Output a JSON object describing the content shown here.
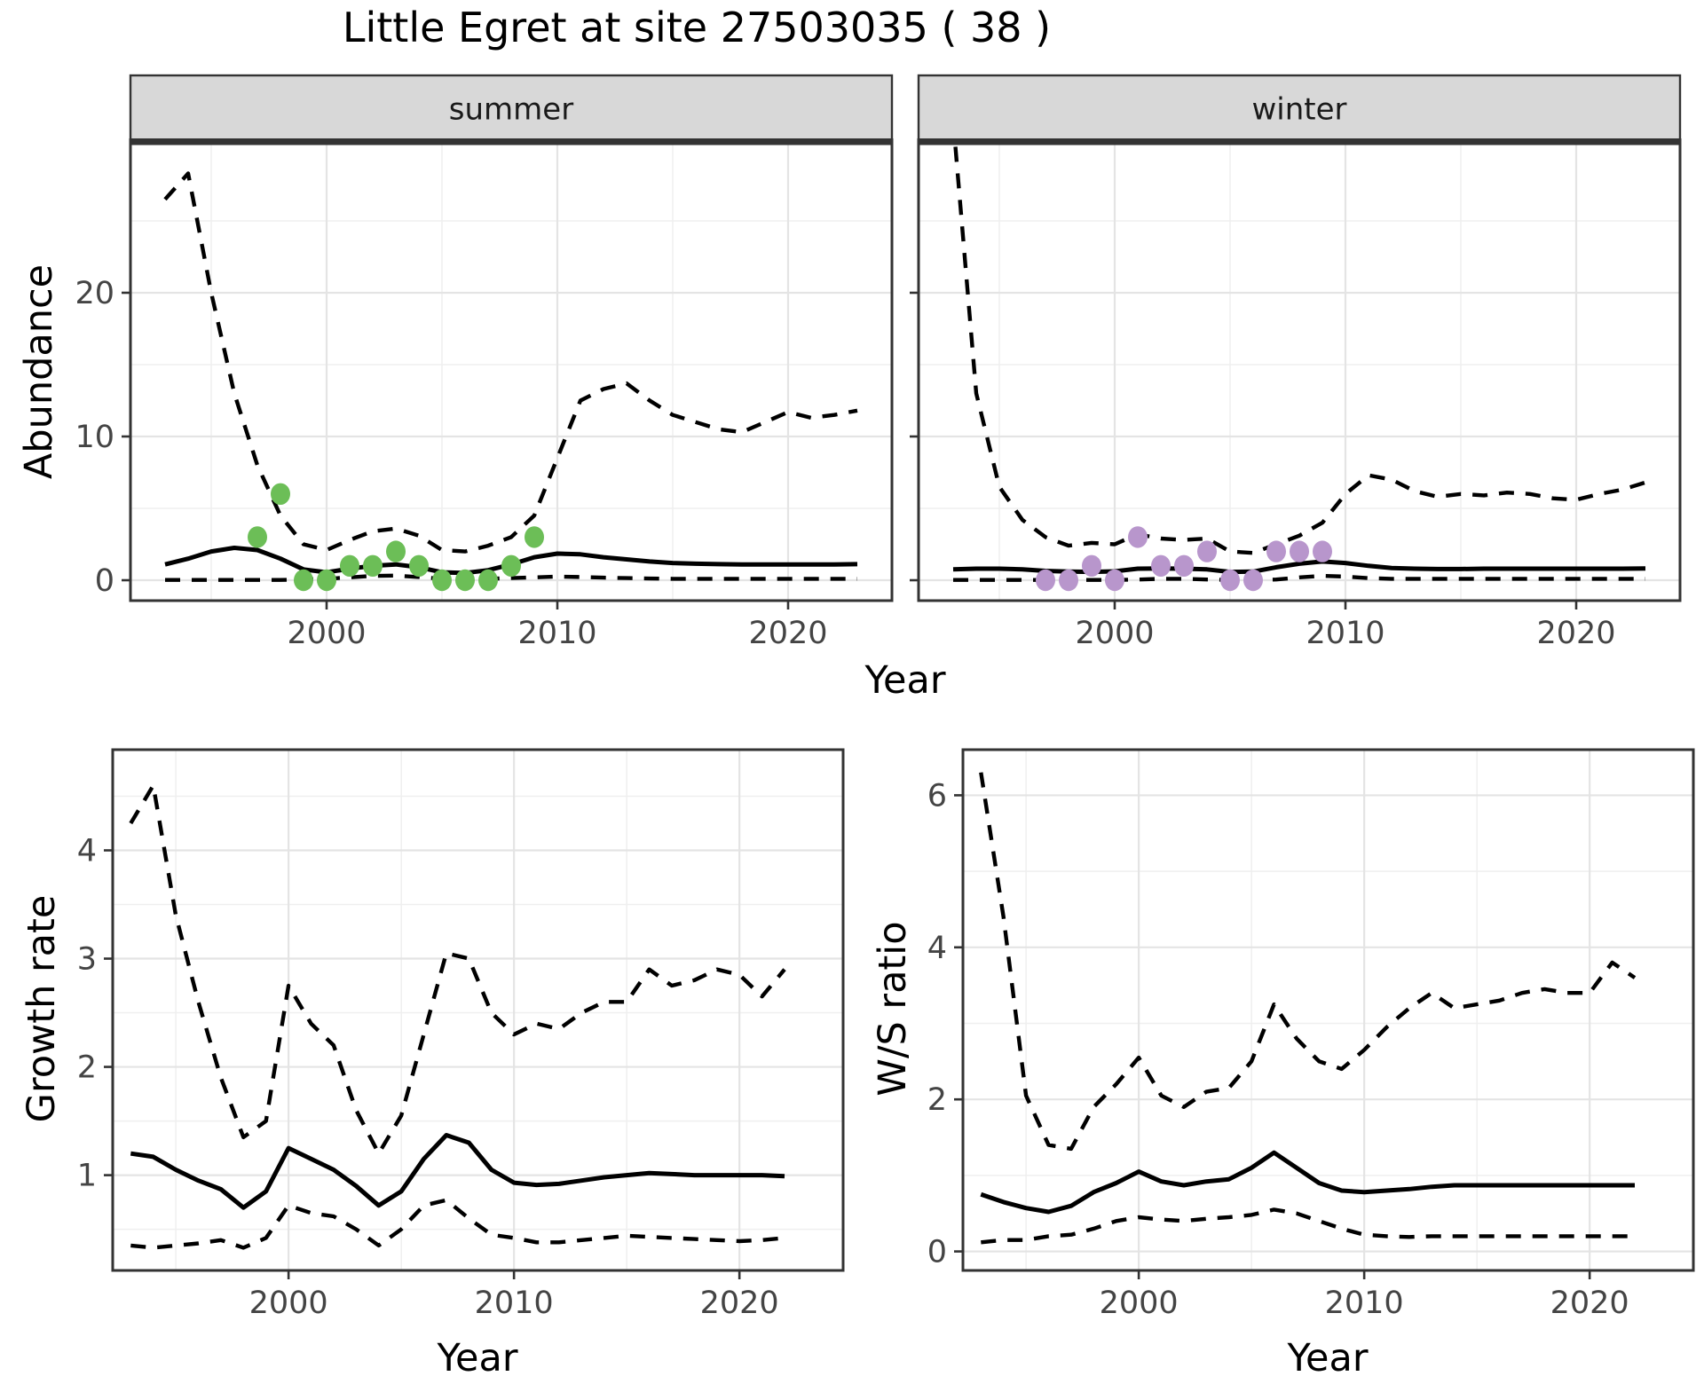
{
  "title": "Little Egret at site 27503035 ( 38 )",
  "labels": {
    "abundance": "Abundance",
    "growth_rate": "Growth rate",
    "ws_ratio": "W/S ratio",
    "year": "Year"
  },
  "style": {
    "summer_point_color": "#6cbe57",
    "winter_point_color": "#b896cc",
    "line_color": "#000000",
    "border_color": "#333333",
    "strip_bg": "#d8d8d8",
    "strip_text_color": "#1a1a1a",
    "grid_major": "#e4e4e4",
    "grid_minor": "#efefef",
    "tick_text_color": "#444444",
    "panel_bg": "#ffffff"
  },
  "chart_data": [
    {
      "id": "abundance-summer",
      "type": "line",
      "facet_label": "summer",
      "xlabel": "Year",
      "ylabel": "Abundance",
      "x_range": [
        1991.5,
        2024.5
      ],
      "y_range": [
        -1.42,
        30.37
      ],
      "xticks": [
        2000,
        2010,
        2020
      ],
      "yticks": [
        0,
        10,
        20
      ],
      "grid": true,
      "legend": "none",
      "x": [
        1993,
        1994,
        1995,
        1996,
        1997,
        1998,
        1999,
        2000,
        2001,
        2002,
        2003,
        2004,
        2005,
        2006,
        2007,
        2008,
        2009,
        2010,
        2011,
        2012,
        2013,
        2014,
        2015,
        2016,
        2017,
        2018,
        2019,
        2020,
        2021,
        2022,
        2023
      ],
      "series": [
        {
          "name": "upper_ci",
          "style": "dashed",
          "y": [
            26.5,
            28.3,
            20.0,
            13.0,
            8.0,
            4.5,
            2.5,
            2.1,
            2.8,
            3.4,
            3.6,
            3.1,
            2.1,
            2.0,
            2.4,
            3.0,
            4.5,
            8.5,
            12.5,
            13.3,
            13.7,
            12.5,
            11.5,
            11.0,
            10.5,
            10.3,
            11.0,
            11.7,
            11.3,
            11.5,
            11.8
          ]
        },
        {
          "name": "mean",
          "style": "solid",
          "y": [
            1.1,
            1.5,
            2.0,
            2.25,
            2.1,
            1.5,
            0.75,
            0.55,
            0.8,
            1.0,
            1.1,
            0.9,
            0.55,
            0.5,
            0.7,
            1.1,
            1.6,
            1.85,
            1.8,
            1.6,
            1.45,
            1.3,
            1.2,
            1.15,
            1.12,
            1.1,
            1.1,
            1.1,
            1.1,
            1.1,
            1.12
          ]
        },
        {
          "name": "lower_ci",
          "style": "dashed",
          "y": [
            0.02,
            0.02,
            0.02,
            0.02,
            0.02,
            0.02,
            0.05,
            0.1,
            0.2,
            0.3,
            0.32,
            0.22,
            0.1,
            0.08,
            0.1,
            0.15,
            0.2,
            0.25,
            0.22,
            0.18,
            0.15,
            0.12,
            0.1,
            0.1,
            0.1,
            0.1,
            0.1,
            0.1,
            0.1,
            0.1,
            0.1
          ]
        }
      ],
      "points": {
        "name": "observed-counts",
        "color": "#6cbe57",
        "x": [
          1997,
          1998,
          1999,
          2000,
          2001,
          2002,
          2003,
          2004,
          2005,
          2006,
          2007,
          2008,
          2009
        ],
        "y": [
          3,
          6,
          0,
          0,
          1,
          1,
          2,
          1,
          0,
          0,
          0,
          1,
          3
        ]
      }
    },
    {
      "id": "abundance-winter",
      "type": "line",
      "facet_label": "winter",
      "xlabel": "Year",
      "ylabel": "Abundance",
      "x_range": [
        1991.5,
        2024.5
      ],
      "y_range": [
        -1.42,
        30.37
      ],
      "xticks": [
        2000,
        2010,
        2020
      ],
      "yticks": [
        0,
        10,
        20
      ],
      "grid": true,
      "legend": "none",
      "x": [
        1993,
        1994,
        1995,
        1996,
        1997,
        1998,
        1999,
        2000,
        2001,
        2002,
        2003,
        2004,
        2005,
        2006,
        2007,
        2008,
        2009,
        2010,
        2011,
        2012,
        2013,
        2014,
        2015,
        2016,
        2017,
        2018,
        2019,
        2020,
        2021,
        2022,
        2023
      ],
      "series": [
        {
          "name": "upper_ci",
          "style": "dashed",
          "y": [
            32.0,
            13.0,
            6.5,
            4.2,
            3.0,
            2.4,
            2.6,
            2.5,
            3.2,
            2.9,
            2.8,
            2.9,
            2.0,
            1.9,
            2.5,
            3.1,
            4.0,
            6.0,
            7.3,
            7.0,
            6.2,
            5.8,
            6.0,
            5.9,
            6.1,
            6.0,
            5.7,
            5.6,
            6.0,
            6.3,
            6.8
          ]
        },
        {
          "name": "mean",
          "style": "solid",
          "y": [
            0.75,
            0.8,
            0.8,
            0.75,
            0.65,
            0.6,
            0.58,
            0.62,
            0.8,
            0.82,
            0.8,
            0.75,
            0.58,
            0.6,
            0.9,
            1.15,
            1.3,
            1.2,
            1.0,
            0.85,
            0.8,
            0.78,
            0.78,
            0.8,
            0.8,
            0.8,
            0.8,
            0.8,
            0.8,
            0.8,
            0.82
          ]
        },
        {
          "name": "lower_ci",
          "style": "dashed",
          "y": [
            0.02,
            0.02,
            0.02,
            0.02,
            0.02,
            0.02,
            0.02,
            0.02,
            0.05,
            0.1,
            0.1,
            0.05,
            0.02,
            0.02,
            0.05,
            0.2,
            0.3,
            0.25,
            0.15,
            0.1,
            0.1,
            0.1,
            0.1,
            0.1,
            0.1,
            0.1,
            0.1,
            0.1,
            0.1,
            0.1,
            0.1
          ]
        }
      ],
      "points": {
        "name": "observed-counts",
        "color": "#b896cc",
        "x": [
          1997,
          1998,
          1999,
          2000,
          2001,
          2002,
          2003,
          2004,
          2005,
          2006,
          2007,
          2008,
          2009
        ],
        "y": [
          0,
          0,
          1,
          0,
          3,
          1,
          1,
          2,
          0,
          0,
          2,
          2,
          2
        ]
      }
    },
    {
      "id": "growth-rate",
      "type": "line",
      "facet_label": "",
      "xlabel": "Year",
      "ylabel": "Growth rate",
      "x_range": [
        1992.2,
        2024.6
      ],
      "y_range": [
        0.12,
        4.93
      ],
      "xticks": [
        2000,
        2010,
        2020
      ],
      "yticks": [
        1,
        2,
        3,
        4
      ],
      "grid": true,
      "legend": "none",
      "x": [
        1993,
        1994,
        1995,
        1996,
        1997,
        1998,
        1999,
        2000,
        2001,
        2002,
        2003,
        2004,
        2005,
        2006,
        2007,
        2008,
        2009,
        2010,
        2011,
        2012,
        2013,
        2014,
        2015,
        2016,
        2017,
        2018,
        2019,
        2020,
        2021,
        2022
      ],
      "series": [
        {
          "name": "upper_ci",
          "style": "dashed",
          "y": [
            4.25,
            4.6,
            3.4,
            2.6,
            1.9,
            1.35,
            1.5,
            2.75,
            2.4,
            2.2,
            1.6,
            1.2,
            1.55,
            2.3,
            3.05,
            3.0,
            2.5,
            2.3,
            2.4,
            2.35,
            2.5,
            2.6,
            2.6,
            2.9,
            2.75,
            2.8,
            2.9,
            2.85,
            2.65,
            2.9
          ]
        },
        {
          "name": "mean",
          "style": "solid",
          "y": [
            1.2,
            1.17,
            1.05,
            0.95,
            0.87,
            0.7,
            0.85,
            1.25,
            1.15,
            1.05,
            0.9,
            0.72,
            0.85,
            1.15,
            1.37,
            1.3,
            1.05,
            0.93,
            0.91,
            0.92,
            0.95,
            0.98,
            1.0,
            1.02,
            1.01,
            1.0,
            1.0,
            1.0,
            1.0,
            0.99
          ]
        },
        {
          "name": "lower_ci",
          "style": "dashed",
          "y": [
            0.35,
            0.33,
            0.35,
            0.37,
            0.4,
            0.33,
            0.42,
            0.72,
            0.65,
            0.62,
            0.5,
            0.35,
            0.5,
            0.72,
            0.77,
            0.6,
            0.45,
            0.42,
            0.38,
            0.38,
            0.4,
            0.42,
            0.44,
            0.43,
            0.42,
            0.41,
            0.4,
            0.39,
            0.4,
            0.42
          ]
        }
      ]
    },
    {
      "id": "ws-ratio",
      "type": "line",
      "facet_label": "",
      "xlabel": "Year",
      "ylabel": "W/S ratio",
      "x_range": [
        1992.2,
        2024.6
      ],
      "y_range": [
        -0.25,
        6.6
      ],
      "xticks": [
        2000,
        2010,
        2020
      ],
      "yticks": [
        0,
        2,
        4,
        6
      ],
      "grid": true,
      "legend": "none",
      "x": [
        1993,
        1994,
        1995,
        1996,
        1997,
        1998,
        1999,
        2000,
        2001,
        2002,
        2003,
        2004,
        2005,
        2006,
        2007,
        2008,
        2009,
        2010,
        2011,
        2012,
        2013,
        2014,
        2015,
        2016,
        2017,
        2018,
        2019,
        2020,
        2021,
        2022
      ],
      "series": [
        {
          "name": "upper_ci",
          "style": "dashed",
          "y": [
            6.3,
            4.4,
            2.05,
            1.4,
            1.35,
            1.9,
            2.2,
            2.55,
            2.05,
            1.9,
            2.1,
            2.15,
            2.5,
            3.25,
            2.8,
            2.5,
            2.4,
            2.65,
            2.95,
            3.2,
            3.4,
            3.2,
            3.25,
            3.3,
            3.4,
            3.45,
            3.4,
            3.4,
            3.8,
            3.6
          ]
        },
        {
          "name": "mean",
          "style": "solid",
          "y": [
            0.75,
            0.65,
            0.57,
            0.52,
            0.6,
            0.78,
            0.9,
            1.05,
            0.92,
            0.87,
            0.92,
            0.95,
            1.1,
            1.3,
            1.1,
            0.9,
            0.8,
            0.78,
            0.8,
            0.82,
            0.85,
            0.87,
            0.87,
            0.87,
            0.87,
            0.87,
            0.87,
            0.87,
            0.87,
            0.87
          ]
        },
        {
          "name": "lower_ci",
          "style": "dashed",
          "y": [
            0.12,
            0.15,
            0.15,
            0.2,
            0.22,
            0.3,
            0.4,
            0.45,
            0.42,
            0.4,
            0.43,
            0.45,
            0.48,
            0.55,
            0.5,
            0.4,
            0.3,
            0.22,
            0.2,
            0.19,
            0.2,
            0.2,
            0.2,
            0.2,
            0.2,
            0.2,
            0.2,
            0.2,
            0.2,
            0.2
          ]
        }
      ]
    }
  ]
}
